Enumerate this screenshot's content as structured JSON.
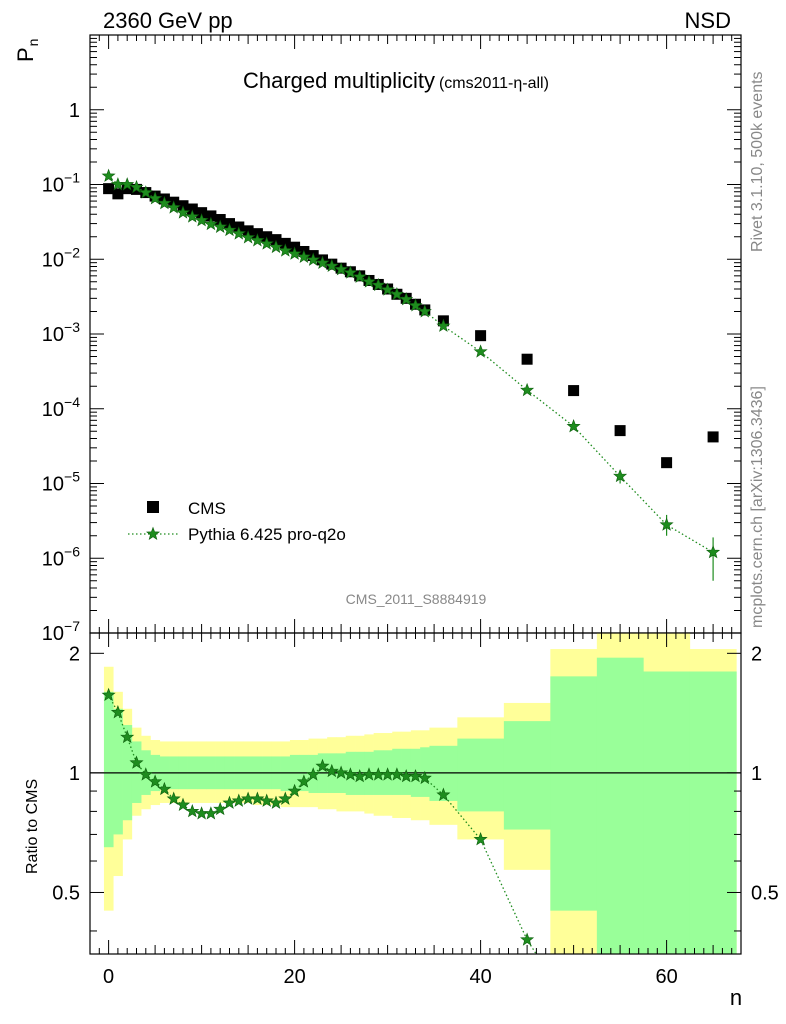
{
  "header": {
    "left": "2360 GeV pp",
    "right": "NSD"
  },
  "side_text": {
    "rivet": "Rivet 3.1.10,  500k events",
    "mcplots": "mcplots.cern.ch [arXiv:1306.3436]"
  },
  "colors": {
    "data": "#000000",
    "mc": "#1e8c1e",
    "band_inner": "#99ff99",
    "band_outer": "#ffff99"
  },
  "chart_data": [
    {
      "type": "scatter",
      "title": "Charged multiplicity",
      "subtitle": "(cms2011-η-all)",
      "analysis_label": "CMS_2011_S8884919",
      "xlabel": "n",
      "ylabel": "P",
      "ylabel_sub": "n",
      "yscale": "log",
      "xlim": [
        -2,
        68
      ],
      "ylim": [
        1e-07,
        10
      ],
      "ytick_labels": [
        {
          "v": 1,
          "base": "1",
          "exp": ""
        },
        {
          "v": 0.1,
          "base": "10",
          "exp": "−1"
        },
        {
          "v": 0.01,
          "base": "10",
          "exp": "−2"
        },
        {
          "v": 0.001,
          "base": "10",
          "exp": "−3"
        },
        {
          "v": 0.0001,
          "base": "10",
          "exp": "−4"
        },
        {
          "v": 1e-05,
          "base": "10",
          "exp": "−5"
        },
        {
          "v": 1e-06,
          "base": "10",
          "exp": "−6"
        },
        {
          "v": 1e-07,
          "base": "10",
          "exp": "−7"
        }
      ],
      "legend_position": "bottom-left",
      "series": [
        {
          "name": "CMS",
          "marker": "square",
          "x": [
            0,
            1,
            2,
            3,
            4,
            5,
            6,
            7,
            8,
            9,
            10,
            11,
            12,
            13,
            14,
            15,
            16,
            17,
            18,
            19,
            20,
            21,
            22,
            23,
            24,
            25,
            26,
            27,
            28,
            29,
            30,
            31,
            32,
            33,
            34,
            36,
            40,
            45,
            50,
            55,
            60,
            65
          ],
          "y": [
            0.088,
            0.075,
            0.088,
            0.086,
            0.078,
            0.07,
            0.064,
            0.058,
            0.052,
            0.047,
            0.042,
            0.038,
            0.034,
            0.03,
            0.027,
            0.024,
            0.022,
            0.02,
            0.0183,
            0.0163,
            0.0145,
            0.0127,
            0.0112,
            0.0098,
            0.0086,
            0.0076,
            0.0068,
            0.006,
            0.0052,
            0.0046,
            0.004,
            0.0034,
            0.003,
            0.0025,
            0.0021,
            0.0015,
            0.00095,
            0.00046,
            0.000175,
            5.1e-05,
            1.9e-05,
            4.2e-05
          ]
        },
        {
          "name": "Pythia 6.425 pro-q2o",
          "marker": "star",
          "line": "dotted",
          "x": [
            0,
            1,
            2,
            3,
            4,
            5,
            6,
            7,
            8,
            9,
            10,
            11,
            12,
            13,
            14,
            15,
            16,
            17,
            18,
            19,
            20,
            21,
            22,
            23,
            24,
            25,
            26,
            27,
            28,
            29,
            30,
            31,
            32,
            33,
            34,
            36,
            40,
            45,
            50,
            55,
            60,
            65
          ],
          "y": [
            0.13,
            0.1,
            0.1,
            0.092,
            0.078,
            0.065,
            0.056,
            0.049,
            0.042,
            0.037,
            0.033,
            0.0295,
            0.027,
            0.0245,
            0.022,
            0.0195,
            0.0178,
            0.0161,
            0.0145,
            0.013,
            0.0118,
            0.0107,
            0.0098,
            0.0089,
            0.0081,
            0.0073,
            0.0066,
            0.0058,
            0.005,
            0.0045,
            0.0039,
            0.0034,
            0.0029,
            0.0024,
            0.002,
            0.00128,
            0.00058,
            0.000177,
            5.8e-05,
            1.25e-05,
            2.8e-06,
            1.2e-06
          ]
        }
      ]
    },
    {
      "type": "line",
      "ylabel": "Ratio to CMS",
      "xlabel": "n",
      "xlim": [
        -2,
        68
      ],
      "ylim": [
        0.35,
        2.25
      ],
      "x_ticks": [
        0,
        20,
        40,
        60
      ],
      "y_ticks": [
        0.5,
        1,
        2
      ],
      "reference_line": 1,
      "bands": {
        "edges": [
          -0.5,
          0.5,
          1.5,
          2.5,
          3.5,
          4.5,
          5.5,
          6.5,
          7.5,
          8.5,
          9.5,
          10.5,
          11.5,
          12.5,
          13.5,
          14.5,
          15.5,
          16.5,
          17.5,
          18.5,
          19.5,
          20.5,
          21.5,
          22.5,
          23.5,
          24.5,
          25.5,
          26.5,
          27.5,
          28.5,
          29.5,
          30.5,
          31.5,
          32.5,
          33.5,
          34.5,
          37.5,
          42.5,
          47.5,
          52.5,
          57.5,
          62.5,
          67.5
        ],
        "inner_lo": [
          0.65,
          0.7,
          0.76,
          0.84,
          0.88,
          0.9,
          0.91,
          0.91,
          0.91,
          0.91,
          0.91,
          0.91,
          0.91,
          0.91,
          0.91,
          0.91,
          0.91,
          0.91,
          0.91,
          0.9,
          0.9,
          0.9,
          0.89,
          0.89,
          0.89,
          0.89,
          0.88,
          0.88,
          0.88,
          0.88,
          0.88,
          0.88,
          0.88,
          0.87,
          0.87,
          0.85,
          0.8,
          0.72,
          0.45,
          0.3,
          0.3,
          0.3
        ],
        "inner_hi": [
          1.6,
          1.45,
          1.32,
          1.2,
          1.14,
          1.11,
          1.1,
          1.1,
          1.1,
          1.1,
          1.1,
          1.1,
          1.1,
          1.1,
          1.1,
          1.1,
          1.1,
          1.1,
          1.1,
          1.1,
          1.11,
          1.11,
          1.11,
          1.12,
          1.12,
          1.12,
          1.13,
          1.13,
          1.13,
          1.14,
          1.14,
          1.15,
          1.15,
          1.15,
          1.16,
          1.17,
          1.22,
          1.35,
          1.75,
          1.95,
          1.8,
          1.8
        ],
        "outer_lo": [
          0.45,
          0.55,
          0.68,
          0.78,
          0.81,
          0.83,
          0.84,
          0.84,
          0.84,
          0.84,
          0.84,
          0.84,
          0.84,
          0.84,
          0.84,
          0.84,
          0.83,
          0.83,
          0.83,
          0.82,
          0.82,
          0.82,
          0.82,
          0.81,
          0.81,
          0.8,
          0.8,
          0.8,
          0.79,
          0.78,
          0.78,
          0.77,
          0.77,
          0.76,
          0.76,
          0.74,
          0.68,
          0.57,
          0.3,
          0.3,
          0.35,
          0.3
        ],
        "outer_hi": [
          1.85,
          1.6,
          1.45,
          1.3,
          1.24,
          1.21,
          1.2,
          1.2,
          1.2,
          1.2,
          1.2,
          1.2,
          1.2,
          1.2,
          1.2,
          1.2,
          1.2,
          1.2,
          1.2,
          1.2,
          1.21,
          1.21,
          1.22,
          1.22,
          1.23,
          1.23,
          1.24,
          1.24,
          1.25,
          1.26,
          1.26,
          1.27,
          1.27,
          1.28,
          1.28,
          1.3,
          1.38,
          1.5,
          2.05,
          2.3,
          2.3,
          2.05
        ]
      },
      "series": [
        {
          "name": "Pythia 6.425 pro-q2o",
          "x": [
            0,
            1,
            2,
            3,
            4,
            5,
            6,
            7,
            8,
            9,
            10,
            11,
            12,
            13,
            14,
            15,
            16,
            17,
            18,
            19,
            20,
            21,
            22,
            23,
            24,
            25,
            26,
            27,
            28,
            29,
            30,
            31,
            32,
            33,
            34,
            36,
            40,
            45
          ],
          "y": [
            1.57,
            1.42,
            1.23,
            1.06,
            0.99,
            0.95,
            0.91,
            0.86,
            0.83,
            0.8,
            0.79,
            0.79,
            0.81,
            0.84,
            0.85,
            0.86,
            0.86,
            0.85,
            0.84,
            0.86,
            0.9,
            0.95,
            0.99,
            1.04,
            1.01,
            1.0,
            0.99,
            0.98,
            0.99,
            0.99,
            0.99,
            0.99,
            0.98,
            0.98,
            0.97,
            0.88,
            0.68,
            0.38
          ]
        }
      ]
    }
  ]
}
